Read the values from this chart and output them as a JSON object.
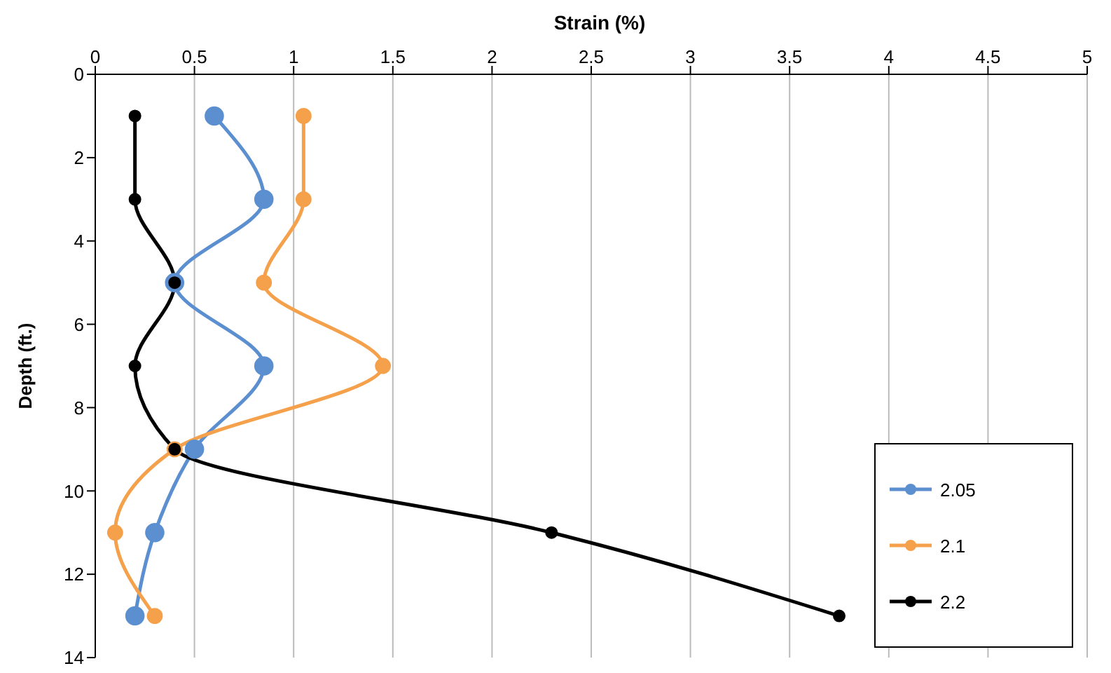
{
  "chart_data": {
    "type": "line",
    "orientation": "horizontal",
    "xlabel": "Strain (%)",
    "ylabel": "Depth (ft.)",
    "x": [
      1,
      3,
      5,
      7,
      9,
      11,
      13
    ],
    "series": [
      {
        "name": "2.05",
        "color": "#5b8fd0",
        "values": [
          0.6,
          0.85,
          0.4,
          0.85,
          0.5,
          0.3,
          0.2
        ]
      },
      {
        "name": "2.1",
        "color": "#f5a04a",
        "values": [
          1.05,
          1.05,
          0.85,
          1.45,
          0.4,
          0.1,
          0.3
        ]
      },
      {
        "name": "2.2",
        "color": "#000000",
        "values": [
          0.2,
          0.2,
          0.4,
          0.2,
          0.4,
          2.3,
          3.75
        ]
      }
    ],
    "xlim": [
      0,
      5
    ],
    "xticks": [
      0,
      0.5,
      1,
      1.5,
      2,
      2.5,
      3,
      3.5,
      4,
      4.5,
      5
    ],
    "ylim": [
      14,
      0
    ],
    "yticks": [
      0,
      2,
      4,
      6,
      8,
      10,
      12,
      14
    ],
    "grid": "x",
    "legend": "bottom right",
    "marker": "circle",
    "line_style": "solid"
  }
}
